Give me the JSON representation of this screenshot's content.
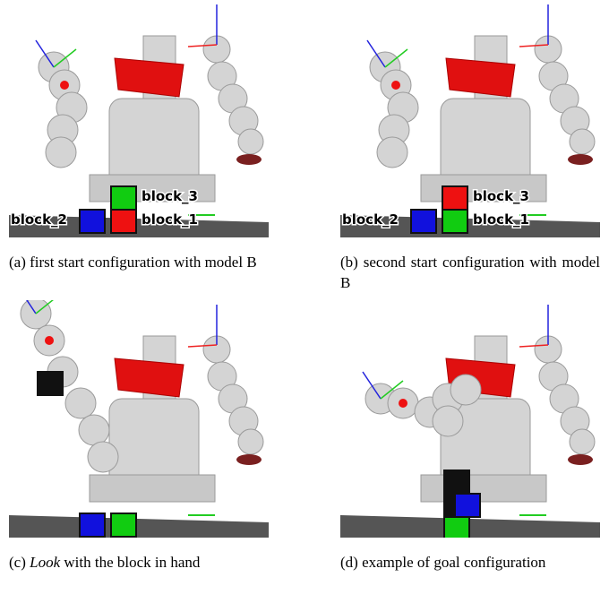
{
  "panels": [
    {
      "labels": [
        "block_3",
        "block_2",
        "block_1"
      ],
      "tag": "(a)",
      "caption": "first start configuration with model B"
    },
    {
      "labels": [
        "block_3",
        "block_2",
        "block_1"
      ],
      "tag": "(b)",
      "caption": "second start configuration with model B"
    },
    {
      "tag": "(c)",
      "emphasis": "Look",
      "caption": "with the block in hand"
    },
    {
      "tag": "(d)",
      "caption": "example of goal configuration"
    }
  ]
}
